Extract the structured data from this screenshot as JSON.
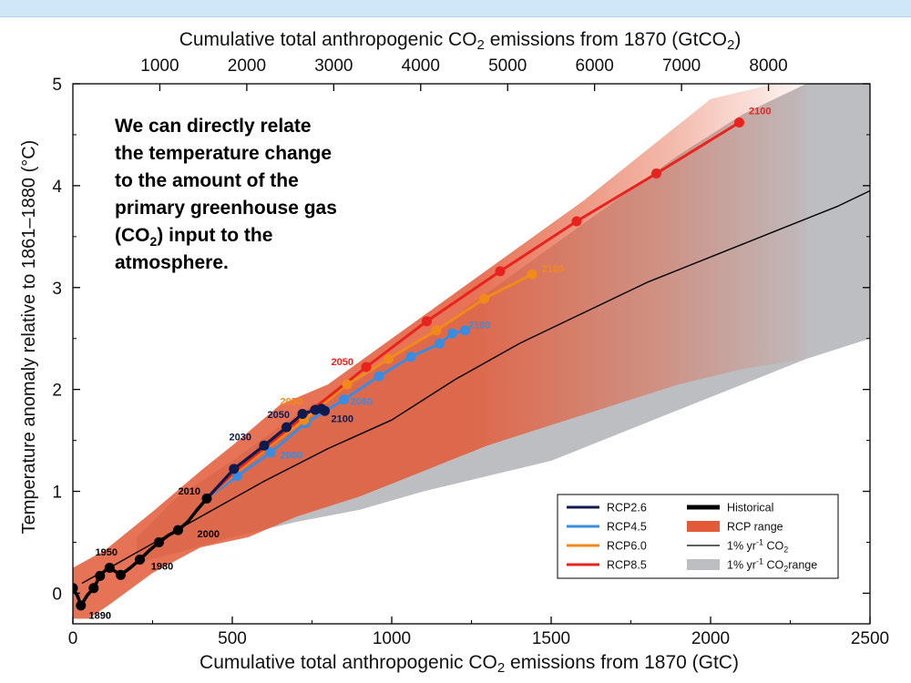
{
  "colors": {
    "rcp26": "#0d1a4f",
    "rcp45": "#3a8ce0",
    "rcp60": "#f28a1a",
    "rcp85": "#e8231e",
    "historical": "#000000",
    "rcp_range": "#e35a38",
    "one_percent": "#000000",
    "one_percent_range": "#bdbec2"
  },
  "annotation": {
    "line1": "We can directly relate",
    "line2": "the temperature change",
    "line3": "to the amount of the",
    "line4": "primary greenhouse gas",
    "line5_pre": "(CO",
    "line5_sub": "2",
    "line5_post": ") input to the",
    "line6": "atmosphere."
  },
  "chart_data": {
    "type": "line",
    "xlabel": "Cumulative total anthropogenic CO2 emissions from 1870 (GtC)",
    "xlabel_top": "Cumulative total anthropogenic CO2 emissions from 1870 (GtCO2)",
    "ylabel": "Temperature anomaly relative to 1861–1880 (°C)",
    "xlim": [
      0,
      2500
    ],
    "ylim": [
      -0.3,
      5
    ],
    "x_ticks": [
      0,
      500,
      1000,
      1500,
      2000,
      2500
    ],
    "y_ticks": [
      0,
      1,
      2,
      3,
      4,
      5
    ],
    "x_top_ticks": [
      1000,
      2000,
      3000,
      4000,
      5000,
      6000,
      7000,
      8000
    ],
    "legend": {
      "placement": "bottom-right",
      "entries": [
        {
          "label": "RCP2.6",
          "key": "rcp26",
          "kind": "line"
        },
        {
          "label": "RCP4.5",
          "key": "rcp45",
          "kind": "line"
        },
        {
          "label": "RCP6.0",
          "key": "rcp60",
          "kind": "line"
        },
        {
          "label": "RCP8.5",
          "key": "rcp85",
          "kind": "line"
        },
        {
          "label": "Historical",
          "key": "historical",
          "kind": "thick"
        },
        {
          "label": "RCP range",
          "key": "rcp_range",
          "kind": "patch"
        },
        {
          "label_pre": "1% yr",
          "label_sup": "-1",
          "label_post": " CO",
          "label_sub": "2",
          "label_tail": "",
          "key": "one_percent",
          "kind": "thin"
        },
        {
          "label_pre": "1% yr",
          "label_sup": "-1",
          "label_post": " CO",
          "label_sub": "2",
          "label_tail": "range",
          "key": "one_percent_range",
          "kind": "patch"
        }
      ]
    },
    "series": [
      {
        "name": "Historical",
        "key": "historical",
        "points": [
          [
            0,
            0.05
          ],
          [
            15,
            -0.03
          ],
          [
            25,
            -0.12
          ],
          [
            45,
            -0.02
          ],
          [
            65,
            0.05
          ],
          [
            85,
            0.17
          ],
          [
            100,
            0.22
          ],
          [
            115,
            0.25
          ],
          [
            130,
            0.22
          ],
          [
            150,
            0.18
          ],
          [
            180,
            0.25
          ],
          [
            210,
            0.33
          ],
          [
            240,
            0.42
          ],
          [
            270,
            0.5
          ],
          [
            300,
            0.57
          ],
          [
            330,
            0.62
          ],
          [
            360,
            0.7
          ],
          [
            390,
            0.82
          ],
          [
            420,
            0.93
          ]
        ],
        "markers": [
          [
            0,
            0.05
          ],
          [
            25,
            -0.12
          ],
          [
            65,
            0.05
          ],
          [
            85,
            0.17
          ],
          [
            115,
            0.25
          ],
          [
            150,
            0.18
          ],
          [
            210,
            0.33
          ],
          [
            270,
            0.5
          ],
          [
            330,
            0.62
          ],
          [
            420,
            0.93
          ]
        ]
      },
      {
        "name": "RCP2.6",
        "key": "rcp26",
        "points": [
          [
            420,
            0.93
          ],
          [
            505,
            1.22
          ],
          [
            600,
            1.45
          ],
          [
            670,
            1.63
          ],
          [
            720,
            1.76
          ],
          [
            760,
            1.8
          ],
          [
            780,
            1.81
          ],
          [
            790,
            1.79
          ]
        ],
        "markers": [
          [
            505,
            1.22
          ],
          [
            600,
            1.45
          ],
          [
            670,
            1.63
          ],
          [
            720,
            1.76
          ],
          [
            760,
            1.8
          ],
          [
            780,
            1.81
          ],
          [
            790,
            1.79
          ]
        ]
      },
      {
        "name": "RCP4.5",
        "key": "rcp45",
        "points": [
          [
            420,
            0.93
          ],
          [
            515,
            1.15
          ],
          [
            620,
            1.38
          ],
          [
            730,
            1.67
          ],
          [
            850,
            1.9
          ],
          [
            960,
            2.13
          ],
          [
            1060,
            2.32
          ],
          [
            1150,
            2.45
          ],
          [
            1190,
            2.55
          ],
          [
            1230,
            2.58
          ]
        ],
        "markers": [
          [
            515,
            1.15
          ],
          [
            620,
            1.38
          ],
          [
            730,
            1.67
          ],
          [
            850,
            1.9
          ],
          [
            960,
            2.13
          ],
          [
            1060,
            2.32
          ],
          [
            1150,
            2.45
          ],
          [
            1190,
            2.55
          ],
          [
            1230,
            2.58
          ]
        ]
      },
      {
        "name": "RCP6.0",
        "key": "rcp60",
        "points": [
          [
            420,
            0.93
          ],
          [
            510,
            1.18
          ],
          [
            610,
            1.43
          ],
          [
            725,
            1.7
          ],
          [
            860,
            2.05
          ],
          [
            990,
            2.3
          ],
          [
            1140,
            2.58
          ],
          [
            1290,
            2.89
          ],
          [
            1440,
            3.13
          ]
        ],
        "markers": [
          [
            725,
            1.7
          ],
          [
            860,
            2.05
          ],
          [
            990,
            2.3
          ],
          [
            1140,
            2.58
          ],
          [
            1290,
            2.89
          ],
          [
            1440,
            3.13
          ]
        ]
      },
      {
        "name": "RCP8.5",
        "key": "rcp85",
        "points": [
          [
            420,
            0.93
          ],
          [
            510,
            1.2
          ],
          [
            610,
            1.45
          ],
          [
            730,
            1.75
          ],
          [
            920,
            2.22
          ],
          [
            1110,
            2.67
          ],
          [
            1340,
            3.16
          ],
          [
            1580,
            3.65
          ],
          [
            1830,
            4.12
          ],
          [
            2090,
            4.62
          ]
        ],
        "markers": [
          [
            920,
            2.22
          ],
          [
            1110,
            2.67
          ],
          [
            1340,
            3.16
          ],
          [
            1580,
            3.65
          ],
          [
            1830,
            4.12
          ],
          [
            2090,
            4.62
          ]
        ]
      },
      {
        "name": "1% yr-1 CO2",
        "key": "one_percent",
        "points": [
          [
            30,
            0.1
          ],
          [
            200,
            0.4
          ],
          [
            400,
            0.75
          ],
          [
            600,
            1.1
          ],
          [
            800,
            1.42
          ],
          [
            1000,
            1.7
          ],
          [
            1200,
            2.1
          ],
          [
            1400,
            2.45
          ],
          [
            1600,
            2.75
          ],
          [
            1800,
            3.05
          ],
          [
            2000,
            3.3
          ],
          [
            2200,
            3.55
          ],
          [
            2400,
            3.8
          ],
          [
            2500,
            3.95
          ]
        ]
      }
    ],
    "ranges": [
      {
        "key": "one_percent_range",
        "upper": [
          [
            200,
            0.55
          ],
          [
            330,
            0.95
          ],
          [
            500,
            1.3
          ],
          [
            700,
            1.75
          ],
          [
            900,
            2.1
          ],
          [
            1100,
            2.5
          ],
          [
            1300,
            2.95
          ],
          [
            1500,
            3.4
          ],
          [
            1700,
            3.85
          ],
          [
            1900,
            4.3
          ],
          [
            2100,
            4.7
          ],
          [
            2300,
            5.0
          ],
          [
            2500,
            5.0
          ]
        ],
        "lower": [
          [
            2500,
            2.5
          ],
          [
            2300,
            2.3
          ],
          [
            2100,
            2.05
          ],
          [
            1900,
            1.8
          ],
          [
            1700,
            1.55
          ],
          [
            1500,
            1.3
          ],
          [
            1300,
            1.15
          ],
          [
            1100,
            1.0
          ],
          [
            900,
            0.82
          ],
          [
            700,
            0.7
          ],
          [
            500,
            0.55
          ],
          [
            330,
            0.4
          ],
          [
            200,
            0.3
          ]
        ]
      },
      {
        "key": "rcp_range",
        "upper": [
          [
            0,
            0.25
          ],
          [
            100,
            0.42
          ],
          [
            250,
            0.8
          ],
          [
            400,
            1.2
          ],
          [
            500,
            1.45
          ],
          [
            650,
            1.85
          ],
          [
            800,
            2.05
          ],
          [
            1000,
            2.5
          ],
          [
            1200,
            2.95
          ],
          [
            1400,
            3.4
          ],
          [
            1600,
            3.85
          ],
          [
            1800,
            4.35
          ],
          [
            2000,
            4.85
          ],
          [
            2200,
            5.0
          ],
          [
            2300,
            5.0
          ]
        ],
        "lower": [
          [
            2300,
            2.3
          ],
          [
            2100,
            2.2
          ],
          [
            1900,
            2.05
          ],
          [
            1700,
            1.85
          ],
          [
            1500,
            1.65
          ],
          [
            1300,
            1.45
          ],
          [
            1100,
            1.2
          ],
          [
            900,
            0.95
          ],
          [
            700,
            0.75
          ],
          [
            550,
            0.55
          ],
          [
            400,
            0.45
          ],
          [
            250,
            0.2
          ],
          [
            120,
            -0.1
          ],
          [
            50,
            -0.25
          ],
          [
            0,
            -0.25
          ]
        ]
      }
    ],
    "year_labels": [
      {
        "text": "1890",
        "x": 50,
        "y": -0.25,
        "key": "historical"
      },
      {
        "text": "1950",
        "x": 70,
        "y": 0.37,
        "key": "historical"
      },
      {
        "text": "1980",
        "x": 245,
        "y": 0.23,
        "key": "historical"
      },
      {
        "text": "2000",
        "x": 390,
        "y": 0.55,
        "key": "historical"
      },
      {
        "text": "2010",
        "x": 330,
        "y": 0.97,
        "key": "historical"
      },
      {
        "text": "2030",
        "x": 490,
        "y": 1.5,
        "key": "rcp26"
      },
      {
        "text": "2000",
        "x": 650,
        "y": 1.32,
        "key": "rcp45"
      },
      {
        "text": "2050",
        "x": 610,
        "y": 1.72,
        "key": "rcp26"
      },
      {
        "text": "2050",
        "x": 650,
        "y": 1.85,
        "key": "rcp60"
      },
      {
        "text": "2060",
        "x": 870,
        "y": 1.85,
        "key": "rcp45"
      },
      {
        "text": "2100",
        "x": 810,
        "y": 1.68,
        "key": "rcp26"
      },
      {
        "text": "2050",
        "x": 810,
        "y": 2.24,
        "key": "rcp85"
      },
      {
        "text": "2100",
        "x": 1240,
        "y": 2.6,
        "key": "rcp45"
      },
      {
        "text": "2100",
        "x": 1470,
        "y": 3.15,
        "key": "rcp60"
      },
      {
        "text": "2100",
        "x": 2120,
        "y": 4.7,
        "key": "rcp85"
      }
    ]
  }
}
